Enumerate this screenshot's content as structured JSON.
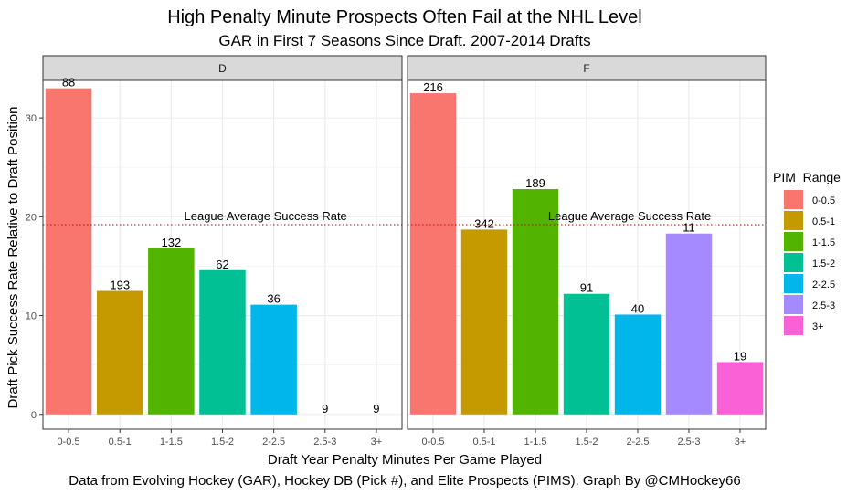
{
  "chart_data": {
    "type": "bar",
    "title": "High Penalty Minute Prospects Often Fail at the NHL Level",
    "subtitle": "GAR in First 7 Seasons Since Draft. 2007-2014 Drafts",
    "xlabel": "Draft Year Penalty Minutes Per Game Played",
    "ylabel": "Draft Pick Success Rate Relative to Draft Position",
    "caption": "Data from Evolving Hockey (GAR), Hockey DB (Pick #), and Elite Prospects (PIMS). Graph By @CMHockey66",
    "categories": [
      "0-0.5",
      "0.5-1",
      "1-1.5",
      "1.5-2",
      "2-2.5",
      "2.5-3",
      "3+"
    ],
    "ylim": [
      -1.5,
      33.8
    ],
    "yticks": [
      0,
      10,
      20,
      30
    ],
    "grid": true,
    "reference_line": {
      "value": 19.2,
      "label": "League Average Success Rate",
      "color": "#cc0000"
    },
    "legend": {
      "title": "PIM_Range",
      "position": "right",
      "items": [
        {
          "label": "0-0.5",
          "color": "#F8766D"
        },
        {
          "label": "0.5-1",
          "color": "#C49A00"
        },
        {
          "label": "1-1.5",
          "color": "#53B400"
        },
        {
          "label": "1.5-2",
          "color": "#00C094"
        },
        {
          "label": "2-2.5",
          "color": "#00B6EB"
        },
        {
          "label": "2.5-3",
          "color": "#A58AFF"
        },
        {
          "label": "3+",
          "color": "#FB61D7"
        }
      ]
    },
    "facets": [
      {
        "name": "D",
        "values": [
          33.0,
          12.5,
          16.8,
          14.6,
          11.1,
          0,
          0
        ],
        "labels": [
          "88",
          "193",
          "132",
          "62",
          "36",
          "9",
          "9"
        ]
      },
      {
        "name": "F",
        "values": [
          32.5,
          18.7,
          22.8,
          12.2,
          10.1,
          18.3,
          5.3
        ],
        "labels": [
          "216",
          "342",
          "189",
          "91",
          "40",
          "11",
          "19"
        ]
      }
    ]
  }
}
